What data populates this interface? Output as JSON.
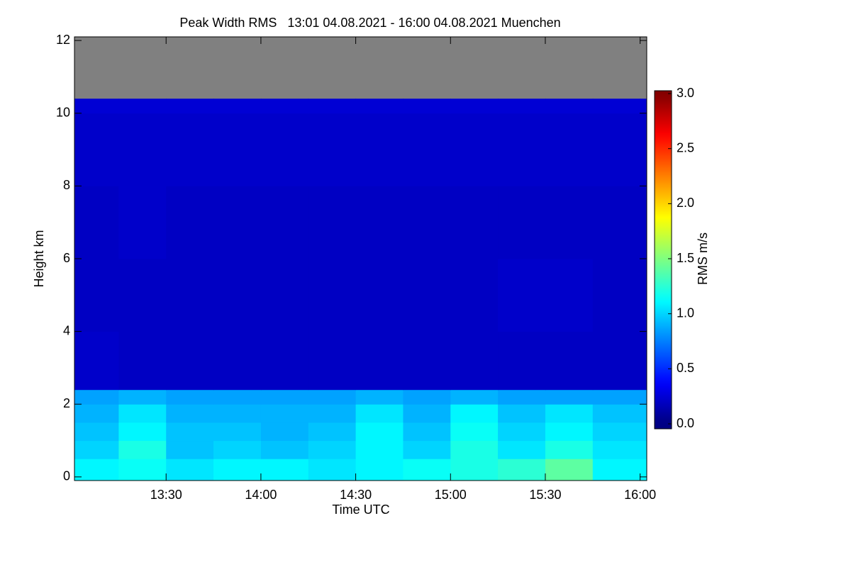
{
  "chart_data": {
    "type": "heatmap",
    "title": "Peak Width RMS   13:01 04.08.2021 - 16:00 04.08.2021 Muenchen",
    "xlabel": "Time UTC",
    "ylabel": "Height km",
    "colorbar_label": "RMS m/s",
    "colormap": "jet",
    "missing_color": "#808080",
    "xlim": [
      13.0167,
      16.035
    ],
    "ylim": [
      -0.1,
      12.1
    ],
    "zlim": [
      -0.045,
      3.026
    ],
    "xticks": [
      {
        "value": 13.5,
        "label": "13:30"
      },
      {
        "value": 14,
        "label": "14:00"
      },
      {
        "value": 14.5,
        "label": "14:30"
      },
      {
        "value": 15,
        "label": "15:00"
      },
      {
        "value": 15.5,
        "label": "15:30"
      },
      {
        "value": 16,
        "label": "16:00"
      }
    ],
    "yticks": [
      0,
      2,
      4,
      6,
      8,
      10,
      12
    ],
    "zticks": [
      {
        "value": 0,
        "label": "0.0"
      },
      {
        "value": 0.5,
        "label": "0.5"
      },
      {
        "value": 1,
        "label": "1.0"
      },
      {
        "value": 1.5,
        "label": "1.5"
      },
      {
        "value": 2,
        "label": "2.0"
      },
      {
        "value": 2.5,
        "label": "2.5"
      },
      {
        "value": 3,
        "label": "3.0"
      }
    ],
    "x_edges": [
      13.0167,
      13.25,
      13.5,
      13.75,
      14,
      14.25,
      14.5,
      14.75,
      15,
      15.25,
      15.5,
      15.75,
      16.0
    ],
    "y_edges": [
      0,
      0.5,
      1,
      1.5,
      2,
      2.4,
      4,
      6,
      8,
      10,
      10.4
    ],
    "z": [
      [
        1.1,
        1.15,
        1.05,
        1.1,
        1.1,
        1.05,
        1.1,
        1.15,
        1.2,
        1.25,
        1.4,
        1.1
      ],
      [
        1.0,
        1.2,
        0.95,
        1.0,
        0.95,
        1.0,
        1.1,
        1.0,
        1.2,
        1.05,
        1.2,
        1.05
      ],
      [
        0.95,
        1.1,
        0.95,
        0.95,
        0.9,
        0.95,
        1.1,
        0.95,
        1.15,
        1.0,
        1.1,
        1.0
      ],
      [
        0.9,
        1.05,
        0.9,
        0.9,
        0.9,
        0.9,
        1.05,
        0.9,
        1.1,
        0.95,
        1.05,
        0.95
      ],
      [
        0.85,
        0.9,
        0.85,
        0.85,
        0.85,
        0.85,
        0.9,
        0.85,
        0.9,
        0.85,
        0.85,
        0.85
      ],
      [
        0.22,
        0.2,
        0.2,
        0.2,
        0.2,
        0.2,
        0.2,
        0.2,
        0.2,
        0.2,
        0.2,
        0.2
      ],
      [
        0.2,
        0.2,
        0.2,
        0.2,
        0.2,
        0.2,
        0.2,
        0.2,
        0.2,
        0.22,
        0.22,
        0.2
      ],
      [
        0.2,
        0.22,
        0.2,
        0.2,
        0.2,
        0.2,
        0.2,
        0.2,
        0.2,
        0.2,
        0.2,
        0.2
      ],
      [
        0.22,
        0.22,
        0.22,
        0.22,
        0.22,
        0.22,
        0.22,
        0.22,
        0.22,
        0.22,
        0.22,
        0.22
      ],
      [
        0.25,
        0.25,
        0.25,
        0.25,
        0.25,
        0.25,
        0.25,
        0.25,
        0.25,
        0.25,
        0.25,
        0.25
      ]
    ]
  }
}
